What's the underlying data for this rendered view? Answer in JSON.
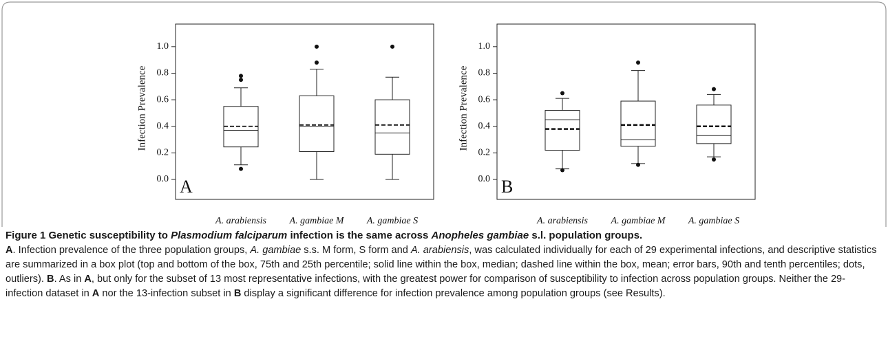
{
  "chart_data": [
    {
      "type": "box",
      "panel_label": "A",
      "ylabel": "Infection Prevalence",
      "categories": [
        "A. arabiensis",
        "A. gambiae M",
        "A. gambiae S"
      ],
      "boxes": [
        {
          "whislo": 0.11,
          "q1": 0.245,
          "med": 0.37,
          "q3": 0.55,
          "whishi": 0.69,
          "mean": 0.4,
          "fliers": [
            0.78,
            0.75,
            0.08
          ]
        },
        {
          "whislo": 0.0,
          "q1": 0.21,
          "med": 0.4,
          "q3": 0.63,
          "whishi": 0.83,
          "mean": 0.41,
          "fliers": [
            1.0,
            0.88
          ]
        },
        {
          "whislo": 0.0,
          "q1": 0.19,
          "med": 0.35,
          "q3": 0.6,
          "whishi": 0.77,
          "mean": 0.41,
          "fliers": [
            1.0
          ]
        }
      ],
      "ylim": [
        -0.15,
        1.17
      ],
      "yticks": [
        {
          "value": 0,
          "label": "0.0"
        },
        0.2,
        0.4,
        0.6,
        0.8,
        {
          "value": 1,
          "label": "1.0"
        }
      ]
    },
    {
      "type": "box",
      "panel_label": "B",
      "ylabel": "Infection Prevalence",
      "categories": [
        "A. arabiensis",
        "A. gambiae M",
        "A. gambiae S"
      ],
      "boxes": [
        {
          "whislo": 0.08,
          "q1": 0.22,
          "med": 0.45,
          "q3": 0.52,
          "whishi": 0.61,
          "mean": 0.38,
          "fliers": [
            0.65,
            0.07
          ]
        },
        {
          "whislo": 0.12,
          "q1": 0.25,
          "med": 0.3,
          "q3": 0.59,
          "whishi": 0.82,
          "mean": 0.41,
          "fliers": [
            0.88,
            0.11
          ]
        },
        {
          "whislo": 0.17,
          "q1": 0.27,
          "med": 0.33,
          "q3": 0.56,
          "whishi": 0.64,
          "mean": 0.4,
          "fliers": [
            0.68,
            0.15
          ]
        }
      ],
      "ylim": [
        -0.15,
        1.17
      ],
      "yticks": [
        {
          "value": 0,
          "label": "0.0"
        },
        0.2,
        0.4,
        0.6,
        0.8,
        {
          "value": 1,
          "label": "1.0"
        }
      ]
    }
  ],
  "caption": {
    "title": [
      {
        "text": "Figure 1 Genetic susceptibility to ",
        "style": "bold"
      },
      {
        "text": "Plasmodium falciparum",
        "style": "bold-italic"
      },
      {
        "text": " infection is the same across ",
        "style": "bold"
      },
      {
        "text": "Anopheles gambiae",
        "style": "bold-italic"
      },
      {
        "text": " s.l. population groups.",
        "style": "bold"
      }
    ],
    "body": [
      {
        "text": "A",
        "style": "bold"
      },
      {
        "text": ". Infection prevalence of the three population groups, ",
        "style": "normal"
      },
      {
        "text": "A. gambiae",
        "style": "italic"
      },
      {
        "text": " s.s. M form, S form and ",
        "style": "normal"
      },
      {
        "text": "A. arabiensis",
        "style": "italic"
      },
      {
        "text": ", was calculated individually for each of 29 experimental infections, and descriptive statistics are summarized in a box plot (top and bottom of the box, 75th and 25th percentile; solid line within the box, median; dashed line within the box, mean; error bars, 90th and tenth percentiles; dots, outliers). ",
        "style": "normal"
      },
      {
        "text": "B",
        "style": "bold"
      },
      {
        "text": ". As in ",
        "style": "normal"
      },
      {
        "text": "A",
        "style": "bold"
      },
      {
        "text": ", but only for the subset of 13 most representative infections, with the greatest power for comparison of susceptibility to infection across population groups. Neither the 29-infection dataset in ",
        "style": "normal"
      },
      {
        "text": "A",
        "style": "bold"
      },
      {
        "text": " nor the 13-infection subset in ",
        "style": "normal"
      },
      {
        "text": "B",
        "style": "bold"
      },
      {
        "text": " display a significant difference for infection prevalence among population groups (see Results).",
        "style": "normal"
      }
    ]
  }
}
